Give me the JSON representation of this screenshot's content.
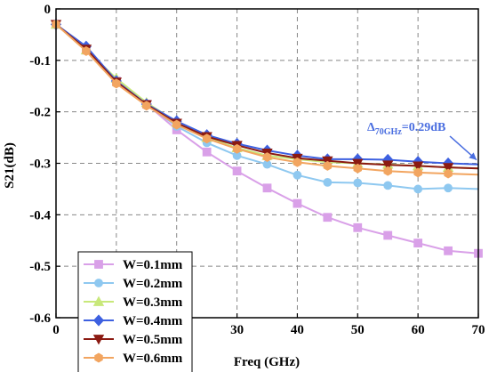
{
  "chart_data": {
    "type": "line",
    "xlabel": "Freq (GHz)",
    "ylabel": "S21(dB)",
    "xlim": [
      0,
      70
    ],
    "ylim": [
      -0.6,
      0
    ],
    "xticks": [
      0,
      10,
      20,
      30,
      40,
      50,
      60,
      70
    ],
    "yticks": [
      0,
      -0.1,
      -0.2,
      -0.3,
      -0.4,
      -0.5,
      -0.6
    ],
    "x_tick_labels": [
      "0",
      "10",
      "20",
      "30",
      "40",
      "50",
      "60",
      "70"
    ],
    "y_tick_labels": [
      "0",
      "-0.1",
      "-0.2",
      "-0.3",
      "-0.4",
      "-0.5",
      "-0.6"
    ],
    "grid": true,
    "legend_position": "bottom-left",
    "x": [
      0,
      5,
      10,
      15,
      20,
      25,
      30,
      35,
      40,
      45,
      50,
      55,
      60,
      65,
      70
    ],
    "series": [
      {
        "name": "W=0.1mm",
        "color": "#d9a0e8",
        "marker": "square",
        "values": [
          -0.03,
          -0.08,
          -0.14,
          -0.185,
          -0.235,
          -0.278,
          -0.315,
          -0.348,
          -0.378,
          -0.405,
          -0.425,
          -0.44,
          -0.455,
          -0.47,
          -0.475
        ]
      },
      {
        "name": "W=0.2mm",
        "color": "#8ec8f0",
        "marker": "circle",
        "values": [
          -0.03,
          -0.078,
          -0.14,
          -0.185,
          -0.228,
          -0.26,
          -0.285,
          -0.302,
          -0.323,
          -0.337,
          -0.338,
          -0.343,
          -0.35,
          -0.348,
          -0.35
        ]
      },
      {
        "name": "W=0.3mm",
        "color": "#c8e87a",
        "marker": "triangle-up",
        "values": [
          -0.03,
          -0.08,
          -0.135,
          -0.182,
          -0.22,
          -0.25,
          -0.27,
          -0.285,
          -0.292,
          -0.298,
          -0.3,
          -0.302,
          -0.305,
          -0.308,
          -0.31
        ]
      },
      {
        "name": "W=0.4mm",
        "color": "#3d60e0",
        "marker": "diamond",
        "values": [
          -0.03,
          -0.073,
          -0.14,
          -0.185,
          -0.218,
          -0.245,
          -0.262,
          -0.275,
          -0.285,
          -0.292,
          -0.292,
          -0.293,
          -0.297,
          -0.3,
          -0.302
        ]
      },
      {
        "name": "W=0.5mm",
        "color": "#8b1a12",
        "marker": "triangle-down",
        "values": [
          -0.03,
          -0.078,
          -0.142,
          -0.186,
          -0.222,
          -0.248,
          -0.265,
          -0.28,
          -0.29,
          -0.295,
          -0.3,
          -0.303,
          -0.305,
          -0.308,
          -0.31
        ]
      },
      {
        "name": "W=0.6mm",
        "color": "#f2a560",
        "marker": "hexagon",
        "values": [
          -0.03,
          -0.082,
          -0.145,
          -0.188,
          -0.225,
          -0.252,
          -0.272,
          -0.288,
          -0.298,
          -0.305,
          -0.31,
          -0.315,
          -0.318,
          -0.32,
          -0.322
        ]
      }
    ],
    "annotation": {
      "text_delta": "Δ",
      "text_sub": "70GHz",
      "text_value": "=0.29dB",
      "color": "#4a6ee0",
      "arrow_target": [
        70,
        -0.302
      ]
    }
  }
}
